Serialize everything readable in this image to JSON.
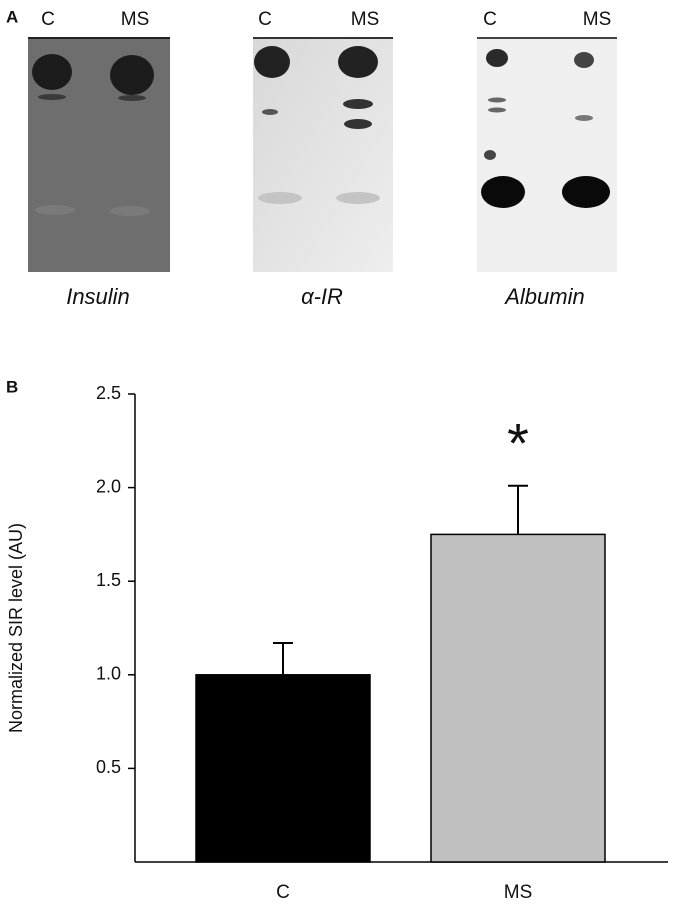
{
  "panel_a": {
    "label": "A",
    "blots": [
      {
        "lanes": [
          "C",
          "MS"
        ],
        "caption": "Insulin"
      },
      {
        "lanes": [
          "C",
          "MS"
        ],
        "caption": "α-IR"
      },
      {
        "lanes": [
          "C",
          "MS"
        ],
        "caption": "Albumin"
      }
    ]
  },
  "chart_data": {
    "type": "bar",
    "panel_label": "B",
    "ylabel": "Normalized SIR level (AU)",
    "categories": [
      "C",
      "MS"
    ],
    "values": [
      1.0,
      1.75
    ],
    "errors": [
      0.17,
      0.26
    ],
    "colors": [
      "#000000",
      "#c0c0c0"
    ],
    "ylim": [
      0,
      2.5
    ],
    "yticks": [
      0.5,
      {
        "value": 1.0,
        "label": "1.0"
      },
      1.5,
      {
        "value": 2.0,
        "label": "2.0"
      },
      2.5
    ],
    "annotation": "*"
  }
}
